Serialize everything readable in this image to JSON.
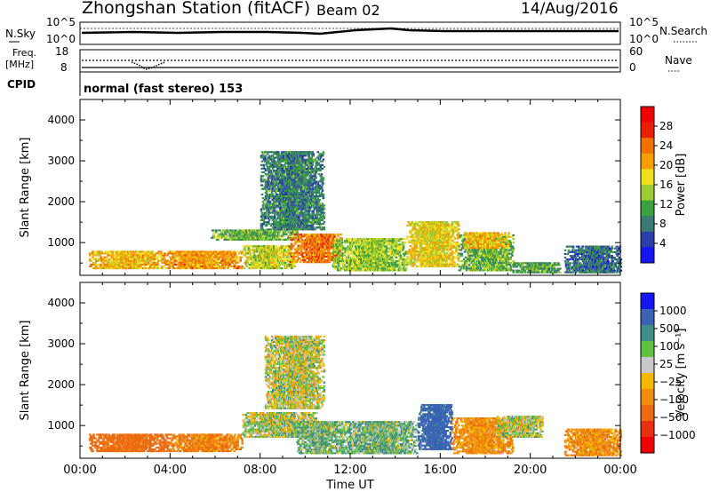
{
  "header": {
    "station": "Zhongshan Station (fitACF)",
    "beam": "Beam 02",
    "date": "14/Aug/2016"
  },
  "colors": {
    "power_scale": [
      "#1515f0",
      "#2a3fa8",
      "#3a7a70",
      "#3aa040",
      "#9ccc30",
      "#f0e020",
      "#f5a000",
      "#f07000",
      "#e82000",
      "#f00000"
    ],
    "velocity_scale": [
      "#1515f0",
      "#3a62b5",
      "#3f8f86",
      "#60c040",
      "#c8c8c8",
      "#f5b800",
      "#f08c10",
      "#ec6a10",
      "#e83010",
      "#f00000"
    ]
  },
  "top_panels": {
    "nsky_label": "N.Sky",
    "nsky_ticks": [
      "10^5",
      "10^0"
    ],
    "nsearch_label": "N.Search",
    "nsearch_ticks": [
      "10^5",
      "10^0"
    ],
    "freq_label_1": "Freq.",
    "freq_label_2": "[MHz]",
    "freq_ticks": [
      "18",
      "8"
    ],
    "nave_label": "Nave",
    "nave_ticks": [
      "60",
      "0"
    ],
    "cpid_label": "CPID",
    "cpid_text": "normal (fast stereo) 153"
  },
  "chart_data": [
    {
      "type": "heatmap",
      "name": "power",
      "ylabel": "Slant Range [km]",
      "yticks": [
        "4000",
        "3000",
        "2000",
        "1000"
      ],
      "ylim": [
        200,
        4500
      ],
      "xlim": [
        0,
        24
      ],
      "colorbar": {
        "label": "Power [dB]",
        "ticks": [
          "28",
          "24",
          "20",
          "16",
          "12",
          "8",
          "4"
        ]
      },
      "regions": [
        {
          "t0": 0.4,
          "t1": 3.6,
          "r0": 350,
          "r1": 780,
          "level": 20
        },
        {
          "t0": 3.6,
          "t1": 7.2,
          "r0": 350,
          "r1": 800,
          "level": 22
        },
        {
          "t0": 7.2,
          "t1": 9.5,
          "r0": 350,
          "r1": 900,
          "level": 16
        },
        {
          "t0": 5.8,
          "t1": 9.6,
          "r0": 1050,
          "r1": 1300,
          "level": 12
        },
        {
          "t0": 8.0,
          "t1": 10.8,
          "r0": 1300,
          "r1": 3200,
          "level": 8
        },
        {
          "t0": 9.3,
          "t1": 11.6,
          "r0": 500,
          "r1": 1200,
          "level": 24
        },
        {
          "t0": 11.2,
          "t1": 14.5,
          "r0": 300,
          "r1": 1100,
          "level": 14
        },
        {
          "t0": 14.5,
          "t1": 16.8,
          "r0": 400,
          "r1": 1500,
          "level": 18
        },
        {
          "t0": 16.8,
          "t1": 19.2,
          "r0": 300,
          "r1": 1200,
          "level": 12
        },
        {
          "t0": 19.2,
          "t1": 21.3,
          "r0": 250,
          "r1": 500,
          "level": 10
        },
        {
          "t0": 17.0,
          "t1": 19.0,
          "r0": 850,
          "r1": 1250,
          "level": 20
        },
        {
          "t0": 21.5,
          "t1": 24.0,
          "r0": 250,
          "r1": 900,
          "level": 6
        }
      ]
    },
    {
      "type": "heatmap",
      "name": "velocity",
      "ylabel": "Slant Range [km]",
      "yticks": [
        "4000",
        "3000",
        "2000",
        "1000"
      ],
      "ylim": [
        200,
        4500
      ],
      "xlim": [
        0,
        24
      ],
      "xlabel": "Time UT",
      "xticks": [
        "00:00",
        "04:00",
        "08:00",
        "12:00",
        "16:00",
        "20:00",
        "00:00"
      ],
      "colorbar": {
        "label": "Velocity [m s⁻¹]",
        "ticks": [
          "1000",
          "500",
          "100",
          "25",
          "−25",
          "−100",
          "−500",
          "−1000"
        ]
      },
      "regions": [
        {
          "t0": 0.4,
          "t1": 4.0,
          "r0": 350,
          "r1": 780,
          "level": -300
        },
        {
          "t0": 4.0,
          "t1": 7.2,
          "r0": 350,
          "r1": 800,
          "level": -200
        },
        {
          "t0": 7.2,
          "t1": 10.5,
          "r0": 700,
          "r1": 1300,
          "level": 10
        },
        {
          "t0": 8.2,
          "t1": 10.8,
          "r0": 1400,
          "r1": 3200,
          "level": 0
        },
        {
          "t0": 9.6,
          "t1": 11.6,
          "r0": 300,
          "r1": 1100,
          "level": 80
        },
        {
          "t0": 11.6,
          "t1": 15.0,
          "r0": 300,
          "r1": 1100,
          "level": 80
        },
        {
          "t0": 15.0,
          "t1": 16.5,
          "r0": 400,
          "r1": 1500,
          "level": 600
        },
        {
          "t0": 16.5,
          "t1": 19.2,
          "r0": 300,
          "r1": 1200,
          "level": -150
        },
        {
          "t0": 18.5,
          "t1": 20.5,
          "r0": 700,
          "r1": 1200,
          "level": 0
        },
        {
          "t0": 21.5,
          "t1": 24.0,
          "r0": 250,
          "r1": 900,
          "level": -150
        }
      ]
    }
  ]
}
